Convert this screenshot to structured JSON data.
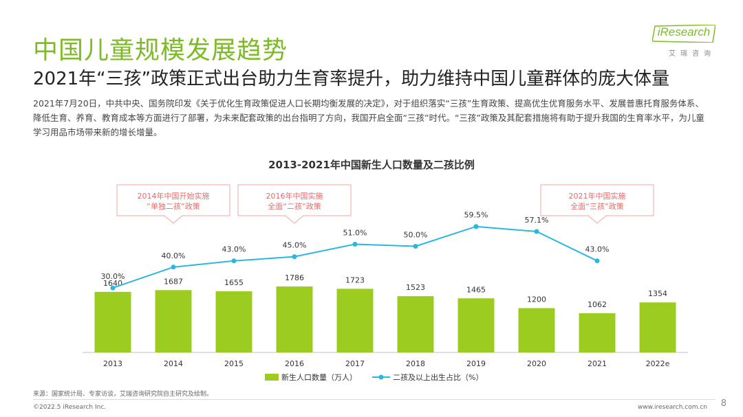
{
  "header": {
    "title": "中国儿童规模发展趋势",
    "subtitle": "2021年“三孩”政策正式出台助力生育率提升，助力维持中国儿童群体的庞大体量",
    "body": "2021年7月20日，中共中央、国务院印发《关于优化生育政策促进人口长期均衡发展的决定》，对于组织落实“三孩”生育政策、提高优生优育服务水平、发展普惠托育服务体系、降低生育、养育、教育成本等方面进行了部署，为未来配套政策的出台指明了方向，我国开启全面“三孩”时代。“三孩”政策及其配套措施将有助于提升我国的生育率水平，为儿童学习用品市场带来新的增长增量。"
  },
  "logo": {
    "text": "iResearch",
    "sub": "艾瑞咨询"
  },
  "chart_data": {
    "type": "bar+line",
    "title": "2013-2021年中国新生人口数量及二孩比例",
    "categories": [
      "2013",
      "2014",
      "2015",
      "2016",
      "2017",
      "2018",
      "2019",
      "2020",
      "2021",
      "2022e"
    ],
    "series": [
      {
        "name": "新生人口数量（万人）",
        "type": "bar",
        "color": "#9ccc1f",
        "values": [
          1640,
          1687,
          1655,
          1786,
          1723,
          1523,
          1465,
          1200,
          1062,
          1354
        ]
      },
      {
        "name": "二孩及以上出生占比（%）",
        "type": "line",
        "color": "#2bb6e0",
        "values": [
          30.0,
          40.0,
          43.0,
          45.0,
          51.0,
          50.0,
          59.5,
          57.1,
          43.0,
          null
        ],
        "labels": [
          "30.0%",
          "40.0%",
          "43.0%",
          "45.0%",
          "51.0%",
          "50.0%",
          "59.5%",
          "57.1%",
          "43.0%",
          ""
        ]
      }
    ],
    "annotations": [
      {
        "category": "2014",
        "lines": [
          "2014年中国开始实施",
          "“单独二孩”政策"
        ]
      },
      {
        "category": "2016",
        "lines": [
          "2016年中国实施",
          "全面“二孩”政策"
        ]
      },
      {
        "category": "2021",
        "lines": [
          "2021年中国实施",
          "全面“三孩”政策"
        ]
      }
    ],
    "legend_position": "bottom",
    "grid": false
  },
  "footer": {
    "source": "来源：国家统计局、专家访谈，艾瑞咨询研究院自主研究及绘制。",
    "copyright": "©2022.5 iResearch Inc.",
    "website": "www.iresearch.com.cn",
    "page": "8"
  }
}
